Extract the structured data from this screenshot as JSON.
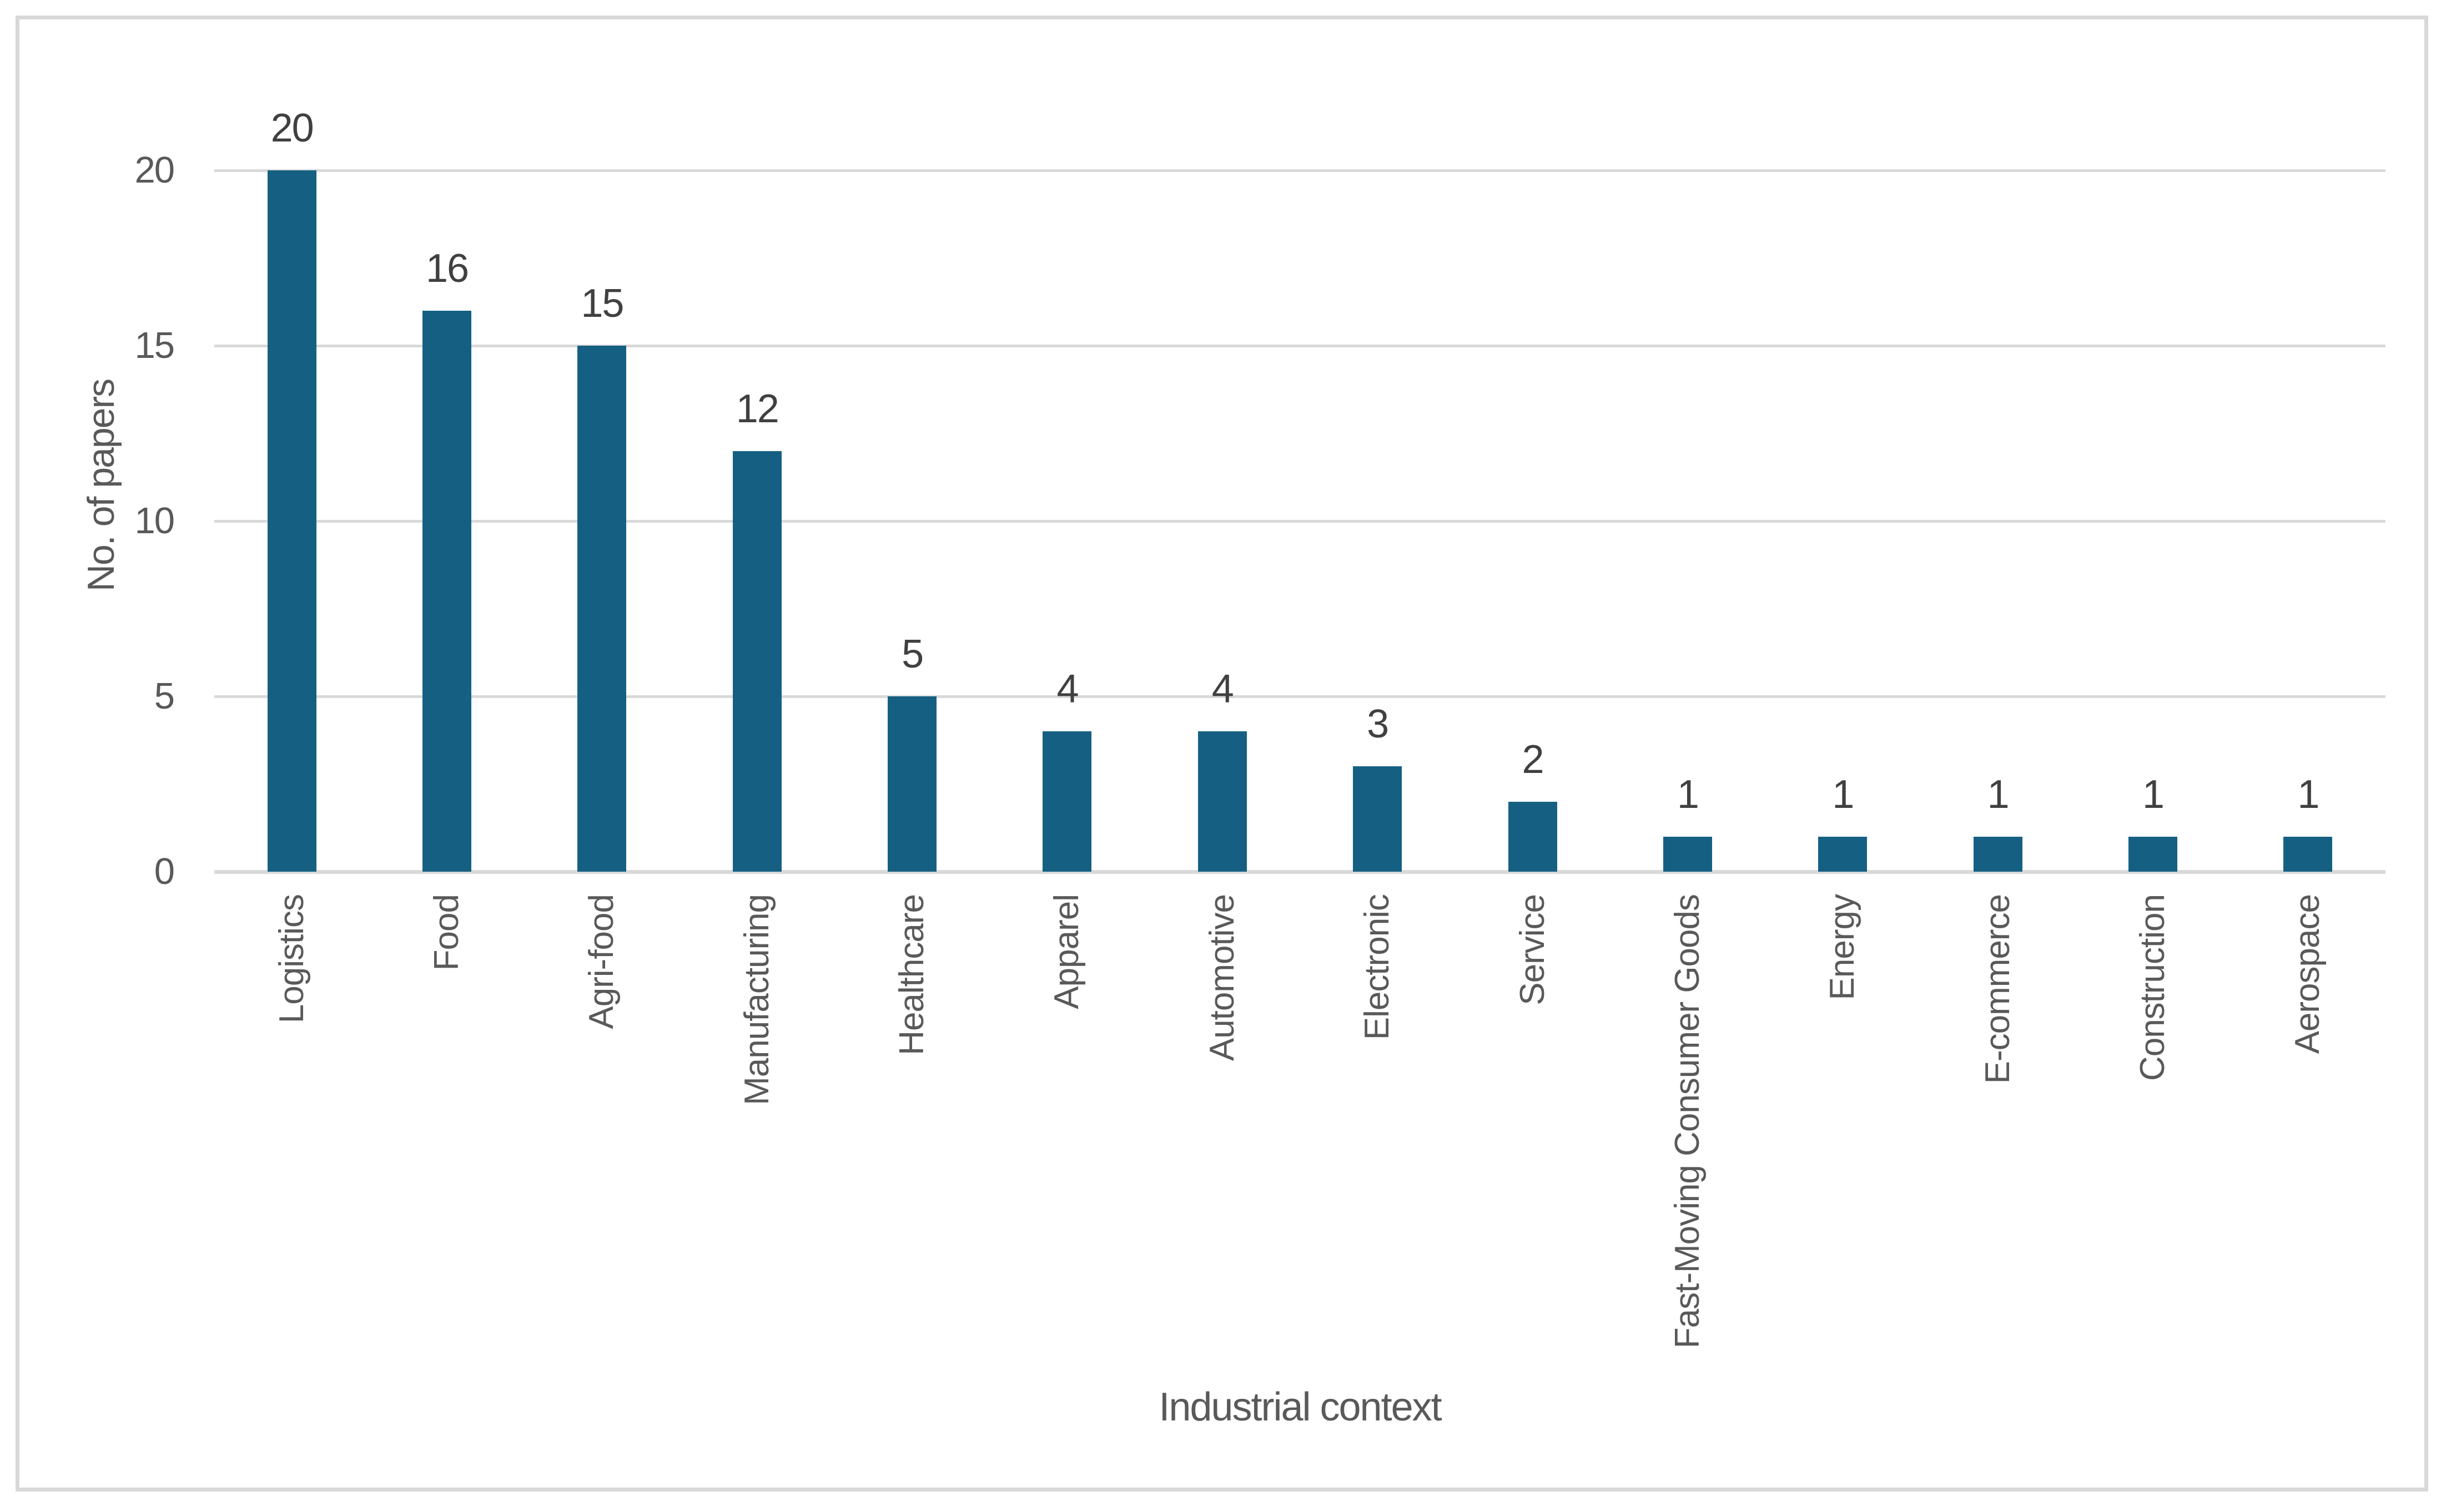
{
  "chart_data": {
    "type": "bar",
    "title": "",
    "categories": [
      "Logistics",
      "Food",
      "Agri-food",
      "Manufacturing",
      "Healthcare",
      "Apparel",
      "Automotive",
      "Electronic",
      "Service",
      "Fast-Moving Consumer Goods",
      "Energy",
      "E-commerce",
      "Construction",
      "Aerospace"
    ],
    "values": [
      20,
      16,
      15,
      12,
      5,
      4,
      4,
      3,
      2,
      1,
      1,
      1,
      1,
      1
    ],
    "data_labels": [
      "20",
      "16",
      "15",
      "12",
      "5",
      "4",
      "4",
      "3",
      "2",
      "1",
      "1",
      "1",
      "1",
      "1"
    ],
    "xlabel": "Industrial context",
    "ylabel": "No. of papers",
    "y_ticks": [
      0,
      5,
      10,
      15,
      20
    ],
    "ylim": [
      0,
      20
    ],
    "grid": true,
    "legend": "none",
    "colors": {
      "bar": "#156082",
      "grid": "#d9d9d9",
      "border": "#d8d8d8",
      "axis_text": "#595959",
      "value_label_text": "#404040"
    }
  }
}
